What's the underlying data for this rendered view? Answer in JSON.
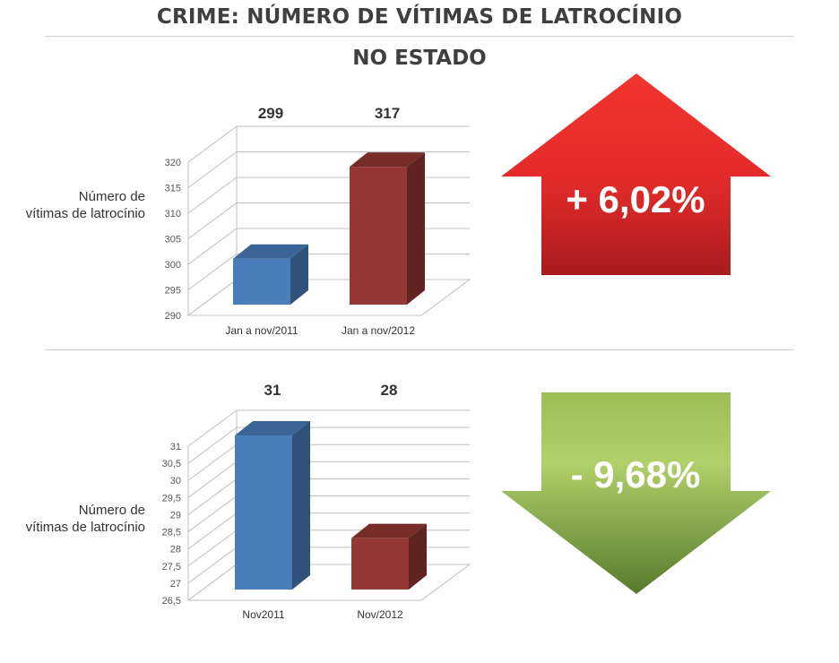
{
  "header": {
    "title": "CRIME: NÚMERO DE VÍTIMAS DE LATROCÍNIO",
    "subtitle": "NO ESTADO"
  },
  "colors": {
    "bar_2011": "#4a7ebb",
    "bar_2012": "#953735",
    "arrow_up": "#e0262a",
    "arrow_down": "#8dae4a",
    "title_text": "#3f3f3f"
  },
  "chart_data": [
    {
      "type": "bar",
      "ylabel_line1": "Número de",
      "ylabel_line2": "vítimas de latrocínio",
      "categories": [
        "Jan a nov/2011",
        "Jan a nov/2012"
      ],
      "values": [
        299,
        317
      ],
      "data_labels": [
        "299",
        "317"
      ],
      "ylim": [
        290,
        320
      ],
      "yticks": [
        "290",
        "295",
        "300",
        "305",
        "310",
        "315",
        "320"
      ],
      "grid": true,
      "change_label": "+ 6,02%",
      "change_direction": "up"
    },
    {
      "type": "bar",
      "ylabel_line1": "Número de",
      "ylabel_line2": "vítimas de latrocínio",
      "categories": [
        "Nov2011",
        "Nov/2012"
      ],
      "values": [
        31,
        28
      ],
      "data_labels": [
        "31",
        "28"
      ],
      "ylim": [
        26.5,
        31
      ],
      "yticks": [
        "26,5",
        "27",
        "27,5",
        "28",
        "28,5",
        "29",
        "29,5",
        "30",
        "30,5",
        "31"
      ],
      "grid": true,
      "change_label": "- 9,68%",
      "change_direction": "down"
    }
  ]
}
